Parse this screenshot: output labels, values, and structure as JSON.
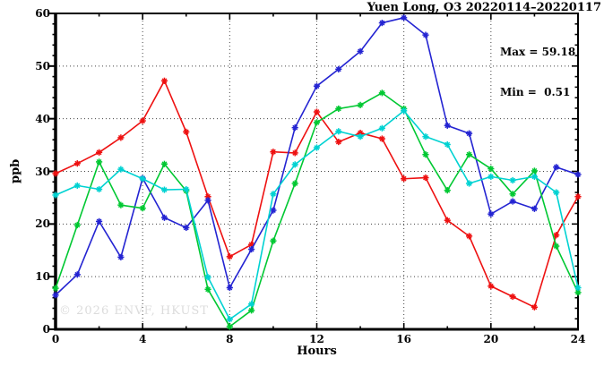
{
  "title": "Yuen Long, O3 20220114–20220117",
  "stats": {
    "max_label": "Max = 59.18",
    "min_label": "Min =  0.51"
  },
  "watermark": "© 2026 ENVF, HKUST",
  "chart_data": {
    "type": "line",
    "title": "Yuen Long, O3 20220114–20220117",
    "xlabel": "Hours",
    "ylabel": "ppb",
    "xlim": [
      0,
      24
    ],
    "ylim": [
      0,
      60
    ],
    "x_major_ticks": [
      0,
      4,
      8,
      12,
      16,
      20,
      24
    ],
    "x_minor_step": 2,
    "y_major_ticks": [
      0,
      10,
      20,
      30,
      40,
      50,
      60
    ],
    "y_minor_step": 2,
    "grid": "dotted lines at major ticks, none at plot edges",
    "legend_position": "none",
    "marker": "asterisk",
    "max": 59.18,
    "min": 0.51,
    "x": [
      0,
      1,
      2,
      3,
      4,
      5,
      6,
      7,
      8,
      9,
      10,
      11,
      12,
      13,
      14,
      15,
      16,
      17,
      18,
      19,
      20,
      21,
      22,
      23,
      24
    ],
    "series": [
      {
        "name": "red",
        "color": "#ee1111",
        "values": [
          29.6,
          31.5,
          33.6,
          36.4,
          39.6,
          47.2,
          37.5,
          25.2,
          13.8,
          16.1,
          33.7,
          33.5,
          41.3,
          35.6,
          37.3,
          36.2,
          28.6,
          28.8,
          20.7,
          17.7,
          8.2,
          6.2,
          4.2,
          17.9,
          25.2
        ]
      },
      {
        "name": "blue",
        "color": "#2424d2",
        "values": [
          6.5,
          10.4,
          20.5,
          13.7,
          28.7,
          21.2,
          19.3,
          24.5,
          7.9,
          15.2,
          22.6,
          38.3,
          46.2,
          49.4,
          52.8,
          58.2,
          59.18,
          55.9,
          38.7,
          37.2,
          21.9,
          24.3,
          22.9,
          30.8,
          29.4
        ]
      },
      {
        "name": "green",
        "color": "#00c832",
        "values": [
          7.8,
          19.8,
          31.8,
          23.6,
          23.0,
          31.4,
          26.3,
          7.6,
          0.51,
          3.6,
          16.8,
          27.7,
          39.3,
          41.9,
          42.6,
          44.9,
          41.9,
          33.2,
          26.4,
          33.2,
          30.5,
          25.7,
          30.1,
          15.8,
          7.0
        ]
      },
      {
        "name": "cyan",
        "color": "#00d2d2",
        "values": [
          25.5,
          27.3,
          26.6,
          30.4,
          28.6,
          26.5,
          26.6,
          9.9,
          1.9,
          4.8,
          25.7,
          31.3,
          34.5,
          37.6,
          36.6,
          38.2,
          41.5,
          36.6,
          35.1,
          27.7,
          29.0,
          28.3,
          29.0,
          26.0,
          7.9
        ]
      }
    ]
  }
}
